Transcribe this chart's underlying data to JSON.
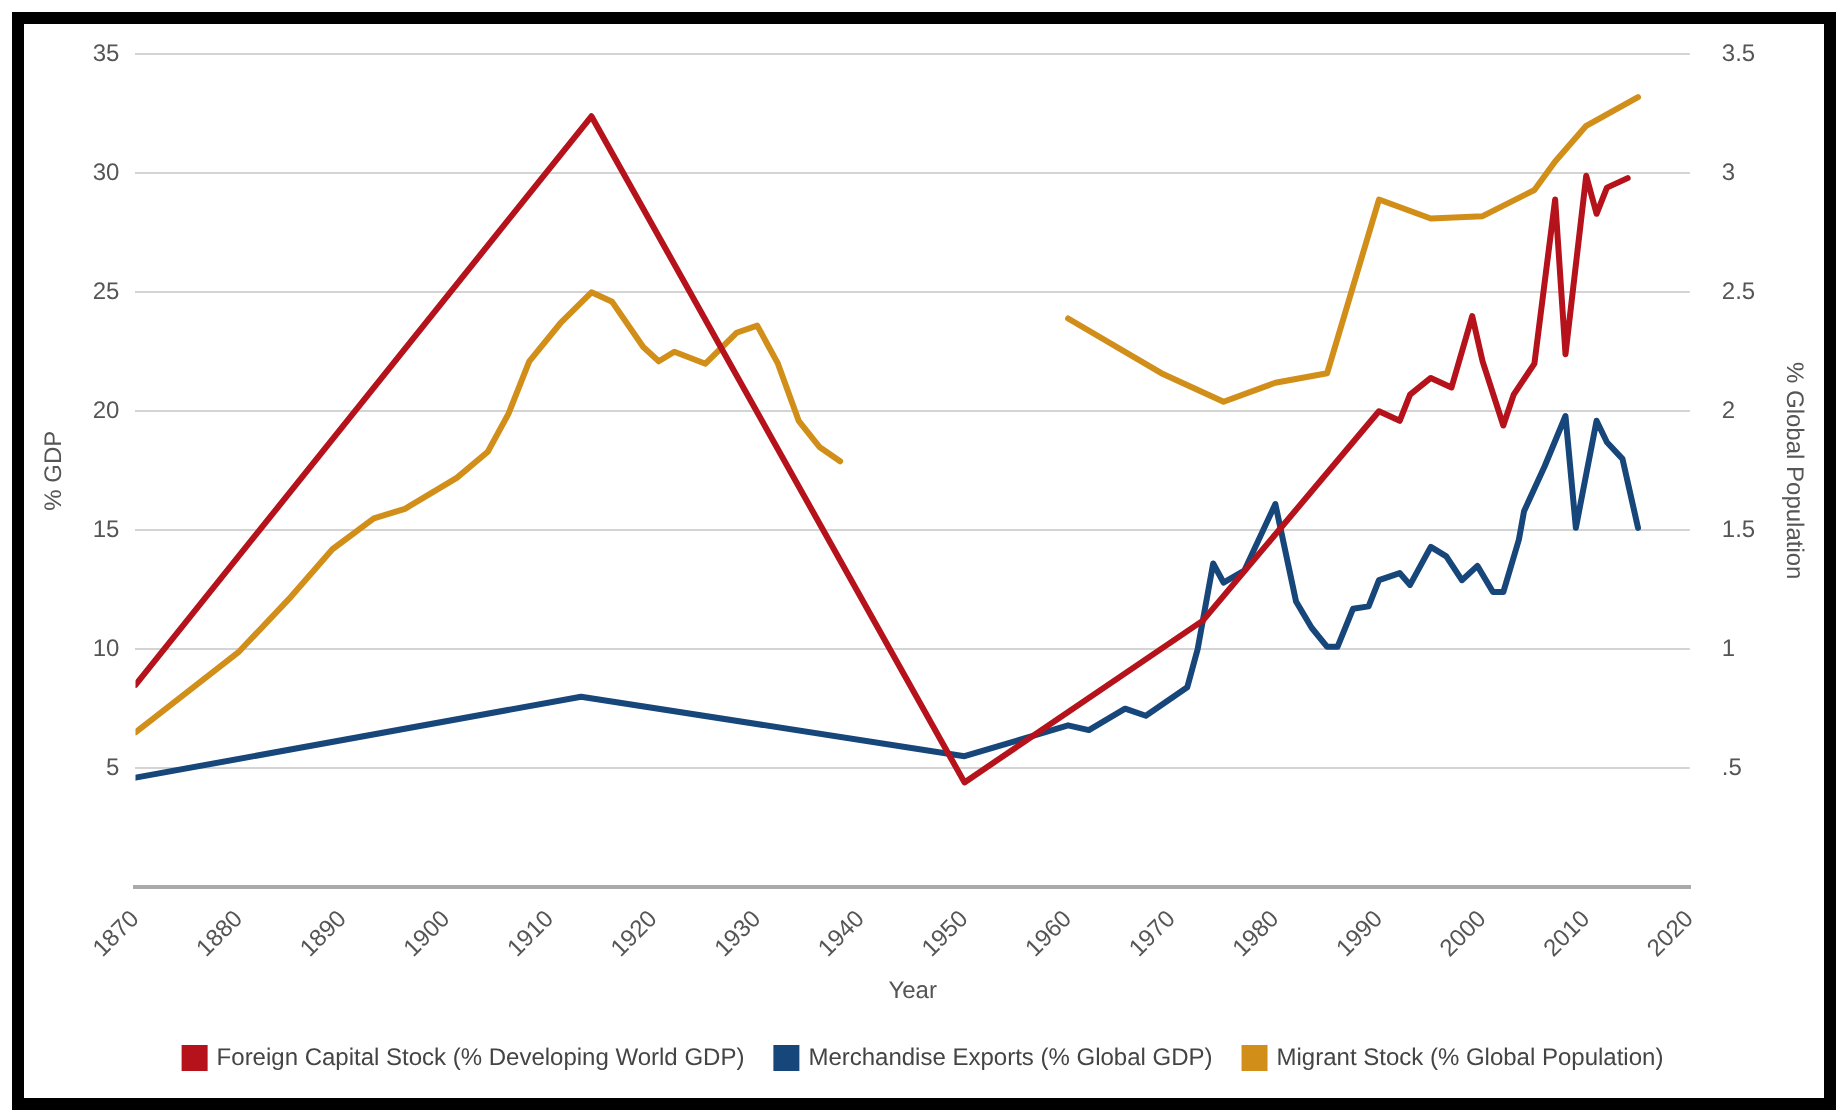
{
  "chart_data": {
    "type": "line",
    "xlabel": "Year",
    "ylabel": "% GDP",
    "y2label": "% Global Population",
    "xlim": [
      1870,
      2020
    ],
    "xticks": [
      1870,
      1880,
      1890,
      1900,
      1910,
      1920,
      1930,
      1940,
      1950,
      1960,
      1970,
      1980,
      1990,
      2000,
      2010,
      2020
    ],
    "ylim": [
      0,
      35
    ],
    "yticks": [
      5,
      10,
      15,
      20,
      25,
      30,
      35
    ],
    "y2lim": [
      0,
      3.5
    ],
    "y2ticks": [
      {
        "value": 0.5,
        "label": ".5"
      },
      1,
      1.5,
      2,
      2.5,
      3,
      3.5
    ],
    "grid": "y",
    "legend": "bottom",
    "marker": "none",
    "line_style": "solid",
    "series": [
      {
        "name": "Foreign Capital Stock (% Developing World GDP)",
        "color": "#b5121b",
        "x": [
          1870,
          1914,
          1950,
          1973,
          1990,
          1992,
          1993,
          1995,
          1997,
          1999,
          2000,
          2002,
          2003,
          2005,
          2007,
          2008,
          2010,
          2011,
          2012,
          2014
        ],
        "values": [
          8.5,
          32.4,
          4.4,
          11.2,
          20.0,
          19.6,
          20.7,
          21.4,
          21.0,
          24.0,
          22.1,
          19.4,
          20.7,
          22.0,
          28.9,
          22.4,
          29.9,
          28.3,
          29.4,
          29.8
        ]
      },
      {
        "name": "Merchandise Exports (% Global GDP)",
        "color": "#17467a",
        "x": [
          1870,
          1913,
          1950,
          1960,
          1962,
          1965.5,
          1967.5,
          1971.5,
          1972.5,
          1974,
          1975,
          1977,
          1980,
          1982,
          1983.5,
          1985,
          1986,
          1987.5,
          1989,
          1990,
          1992,
          1993,
          1995,
          1996.5,
          1998,
          1999.5,
          2001,
          2002,
          2003.5,
          2004,
          2006,
          2008,
          2009,
          2011,
          2012,
          2013.5,
          2015
        ],
        "values": [
          4.6,
          8.0,
          5.5,
          6.8,
          6.6,
          7.5,
          7.2,
          8.4,
          10.0,
          13.6,
          12.8,
          13.3,
          16.1,
          12.0,
          10.9,
          10.1,
          10.1,
          11.7,
          11.8,
          12.9,
          13.2,
          12.7,
          14.3,
          13.9,
          12.9,
          13.5,
          12.4,
          12.4,
          14.6,
          15.8,
          17.7,
          19.8,
          15.1,
          19.6,
          18.7,
          18.0,
          15.1
        ]
      },
      {
        "name": "Migrant Stock (% Global Population)",
        "color": "#d18f1a",
        "axis": "y2",
        "x": [
          1870,
          1880,
          1885,
          1889,
          1893,
          1896,
          1901,
          1904,
          1906,
          1908,
          1911,
          1914,
          1916,
          1919,
          1920.5,
          1922,
          1925,
          1928,
          1930,
          1932,
          1934,
          1936,
          1938,
          1950,
          1960,
          1969,
          1975,
          1980,
          1985,
          1990,
          1995,
          2000,
          2005,
          2007,
          2010,
          2015
        ],
        "values": [
          0.65,
          0.99,
          1.22,
          1.42,
          1.55,
          1.59,
          1.72,
          1.83,
          1.99,
          2.21,
          2.37,
          2.5,
          2.46,
          2.27,
          2.21,
          2.25,
          2.2,
          2.33,
          2.36,
          2.2,
          1.96,
          1.85,
          1.79,
          null,
          2.39,
          2.16,
          2.04,
          2.12,
          2.16,
          2.89,
          2.81,
          2.82,
          2.93,
          3.05,
          3.2,
          3.32
        ]
      }
    ]
  }
}
